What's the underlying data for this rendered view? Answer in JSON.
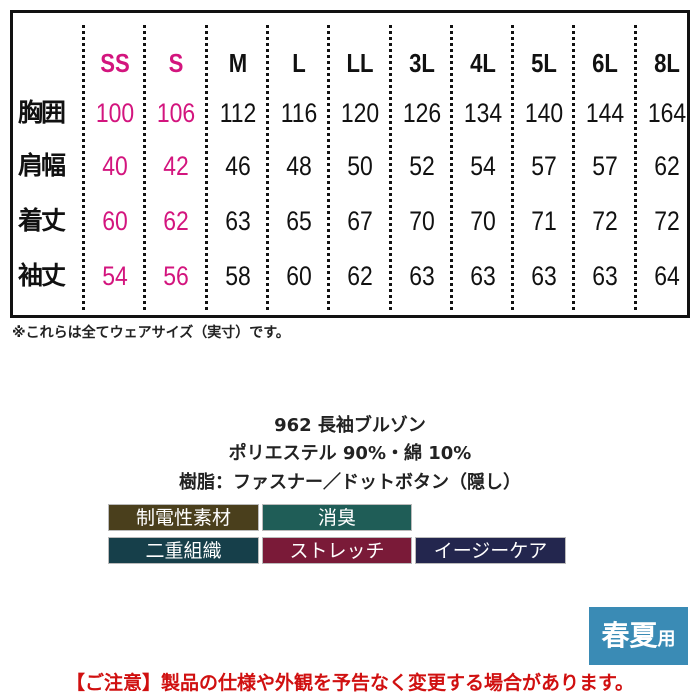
{
  "size_table": {
    "sizes": [
      "SS",
      "S",
      "M",
      "L",
      "LL",
      "3L",
      "4L",
      "5L",
      "6L",
      "8L"
    ],
    "highlighted_sizes": [
      "SS",
      "S"
    ],
    "rows": [
      {
        "label": "胸囲",
        "values": [
          "100",
          "106",
          "112",
          "116",
          "120",
          "126",
          "134",
          "140",
          "144",
          "164"
        ]
      },
      {
        "label": "肩幅",
        "values": [
          "40",
          "42",
          "46",
          "48",
          "50",
          "52",
          "54",
          "57",
          "57",
          "62"
        ]
      },
      {
        "label": "着丈",
        "values": [
          "60",
          "62",
          "63",
          "65",
          "67",
          "70",
          "70",
          "71",
          "72",
          "72"
        ]
      },
      {
        "label": "袖丈",
        "values": [
          "54",
          "56",
          "58",
          "60",
          "62",
          "63",
          "63",
          "63",
          "63",
          "64"
        ]
      }
    ],
    "highlight_color": "#d3157e"
  },
  "note": "※これらは全てウェアサイズ（実寸）です。",
  "product": {
    "name": "962 長袖ブルゾン",
    "material": "ポリエステル 90%・綿 10%",
    "fastener": "樹脂：ファスナー／ドットボタン（隠し）"
  },
  "features": [
    {
      "label": "制電性素材",
      "color": "#4a3f1c"
    },
    {
      "label": "消臭",
      "color": "#1f5d57"
    },
    {
      "label": "二重組織",
      "color": "#163f4a"
    },
    {
      "label": "ストレッチ",
      "color": "#7a1a38"
    },
    {
      "label": "イージーケア",
      "color": "#23264e"
    }
  ],
  "season": {
    "main": "春夏",
    "suffix": "用",
    "color": "#3a8bb5"
  },
  "warning": "【ご注意】製品の仕様や外観を予告なく変更する場合があります。"
}
